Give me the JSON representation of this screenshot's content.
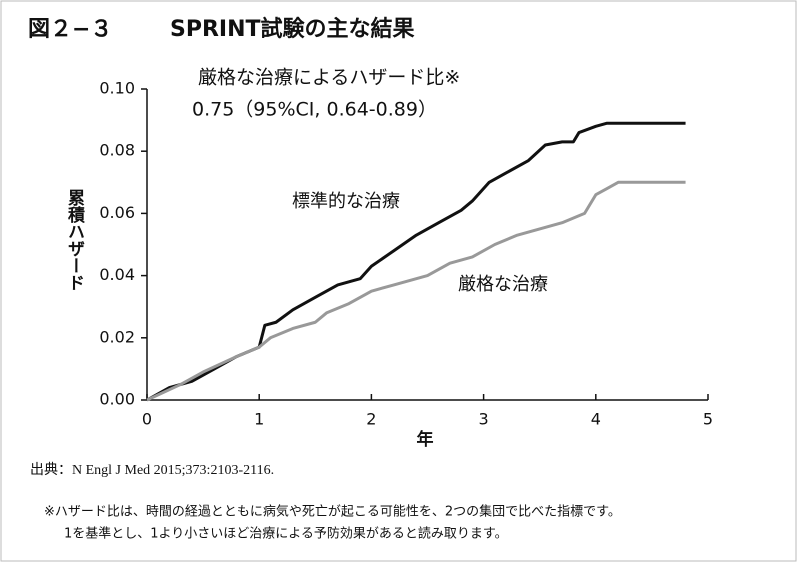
{
  "chart_data": {
    "type": "line",
    "figure_number": "図２−３",
    "title": "SPRINT試験の主な結果",
    "annotation": [
      "厳格な治療によるハザード比※",
      "0.75（95%CI, 0.64-0.89）"
    ],
    "xlabel": "年",
    "ylabel": "累積ハザード",
    "xlim": [
      0,
      5
    ],
    "xticks": [
      0,
      1,
      2,
      3,
      4,
      5
    ],
    "ylim": [
      0,
      0.1
    ],
    "yticks": [
      {
        "value": 0,
        "label": "0.00"
      },
      {
        "value": 0.02,
        "label": "0.02"
      },
      {
        "value": 0.04,
        "label": "0.04"
      },
      {
        "value": 0.06,
        "label": "0.06"
      },
      {
        "value": 0.08,
        "label": "0.08"
      },
      {
        "value": 0.1,
        "label": "0.10"
      }
    ],
    "series": [
      {
        "name": "標準的な治療",
        "color": "#111111",
        "x": [
          0,
          0.2,
          0.4,
          0.6,
          0.8,
          1.0,
          1.05,
          1.15,
          1.3,
          1.5,
          1.7,
          1.8,
          1.9,
          2.0,
          2.2,
          2.4,
          2.6,
          2.8,
          2.9,
          3.05,
          3.2,
          3.4,
          3.55,
          3.7,
          3.8,
          3.85,
          4.0,
          4.1,
          4.8
        ],
        "values": [
          0,
          0.004,
          0.006,
          0.01,
          0.014,
          0.017,
          0.024,
          0.025,
          0.029,
          0.033,
          0.037,
          0.038,
          0.039,
          0.043,
          0.048,
          0.053,
          0.057,
          0.061,
          0.064,
          0.07,
          0.073,
          0.077,
          0.082,
          0.083,
          0.083,
          0.086,
          0.088,
          0.089,
          0.089
        ]
      },
      {
        "name": "厳格な治療",
        "color": "#999999",
        "x": [
          0,
          0.3,
          0.5,
          0.8,
          1.0,
          1.1,
          1.3,
          1.5,
          1.6,
          1.8,
          2.0,
          2.2,
          2.5,
          2.7,
          2.9,
          3.1,
          3.3,
          3.5,
          3.7,
          3.9,
          4.0,
          4.1,
          4.2,
          4.8
        ],
        "values": [
          0,
          0.005,
          0.009,
          0.014,
          0.017,
          0.02,
          0.023,
          0.025,
          0.028,
          0.031,
          0.035,
          0.037,
          0.04,
          0.044,
          0.046,
          0.05,
          0.053,
          0.055,
          0.057,
          0.06,
          0.066,
          0.068,
          0.07,
          0.07
        ]
      }
    ]
  },
  "source": "出典：N Engl J Med 2015;373:2103-2116.",
  "footnote": [
    "※ハザード比は、時間の経過とともに病気や死亡が起こる可能性を、2つの集団で比べた指標です。",
    "1を基準とし、1より小さいほど治療による予防効果があると読み取ります。"
  ]
}
